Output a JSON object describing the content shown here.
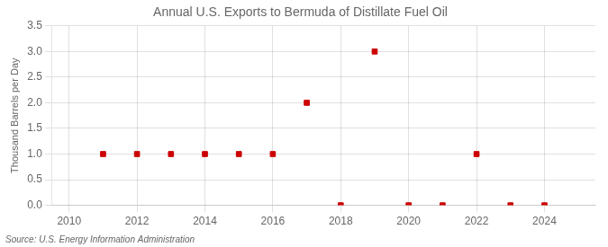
{
  "chart_data": {
    "type": "scatter",
    "title": "Annual U.S. Exports to Bermuda of Distillate Fuel Oil",
    "ylabel": "Thousand Barrels per Day",
    "annotations": [
      "Source: U.S. Energy Information Administration"
    ],
    "x": [
      2011,
      2012,
      2013,
      2014,
      2015,
      2016,
      2017,
      2018,
      2019,
      2020,
      2021,
      2022,
      2023,
      2024
    ],
    "values": [
      1.0,
      1.0,
      1.0,
      1.0,
      1.0,
      1.0,
      2.0,
      0.0,
      3.0,
      0.0,
      0.0,
      1.0,
      0.0,
      0.0
    ],
    "color": "#cc0000",
    "marker": "square",
    "xlim": [
      2009.5,
      2025.5
    ],
    "xticks": [
      2010,
      2012,
      2014,
      2016,
      2018,
      2020,
      2022,
      2024
    ],
    "ylim": [
      0.0,
      3.5
    ],
    "yticks": [
      {
        "value": 0,
        "label": "0.0"
      },
      0.5,
      {
        "value": 1,
        "label": "1.0"
      },
      1.5,
      {
        "value": 2,
        "label": "2.0"
      },
      2.5,
      {
        "value": 3,
        "label": "3.0"
      },
      3.5
    ],
    "grid": true
  }
}
